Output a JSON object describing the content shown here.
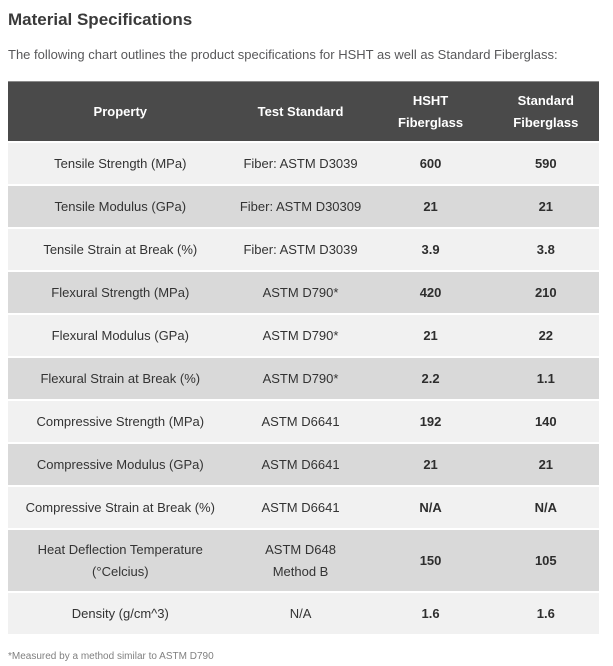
{
  "page": {
    "title": "Material Specifications",
    "intro": "The following chart outlines the product specifications for HSHT as well as Standard Fiberglass:",
    "footnote": "*Measured by a method similar to ASTM D790"
  },
  "colors": {
    "header_bg": "#4a4a4a",
    "header_text": "#ffffff",
    "row_light": "#f1f1f1",
    "row_dark": "#d9d9d9",
    "cell_text": "#333333"
  },
  "table": {
    "columns": [
      {
        "label": "Property"
      },
      {
        "label": "Test Standard"
      },
      {
        "label": "HSHT\nFiberglass"
      },
      {
        "label": "Standard\nFiberglass"
      }
    ],
    "rows": [
      {
        "property": "Tensile Strength (MPa)",
        "test_standard": "Fiber: ASTM D3039",
        "hsht": "600",
        "standard": "590"
      },
      {
        "property": "Tensile Modulus (GPa)",
        "test_standard": "Fiber: ASTM D30309",
        "hsht": "21",
        "standard": "21"
      },
      {
        "property": "Tensile Strain at Break (%)",
        "test_standard": "Fiber: ASTM D3039",
        "hsht": "3.9",
        "standard": "3.8"
      },
      {
        "property": "Flexural Strength (MPa)",
        "test_standard": "ASTM D790*",
        "hsht": "420",
        "standard": "210"
      },
      {
        "property": "Flexural Modulus (GPa)",
        "test_standard": "ASTM D790*",
        "hsht": "21",
        "standard": "22"
      },
      {
        "property": "Flexural Strain at Break (%)",
        "test_standard": "ASTM D790*",
        "hsht": "2.2",
        "standard": "1.1"
      },
      {
        "property": "Compressive Strength (MPa)",
        "test_standard": "ASTM D6641",
        "hsht": "192",
        "standard": "140"
      },
      {
        "property": "Compressive Modulus (GPa)",
        "test_standard": "ASTM D6641",
        "hsht": "21",
        "standard": "21"
      },
      {
        "property": "Compressive Strain at Break (%)",
        "test_standard": "ASTM D6641",
        "hsht": "N/A",
        "standard": "N/A"
      },
      {
        "property": "Heat Deflection Temperature\n(°Celcius)",
        "test_standard": "ASTM D648\nMethod B",
        "hsht": "150",
        "standard": "105"
      },
      {
        "property": "Density (g/cm^3)",
        "test_standard": "N/A",
        "hsht": "1.6",
        "standard": "1.6"
      }
    ]
  }
}
